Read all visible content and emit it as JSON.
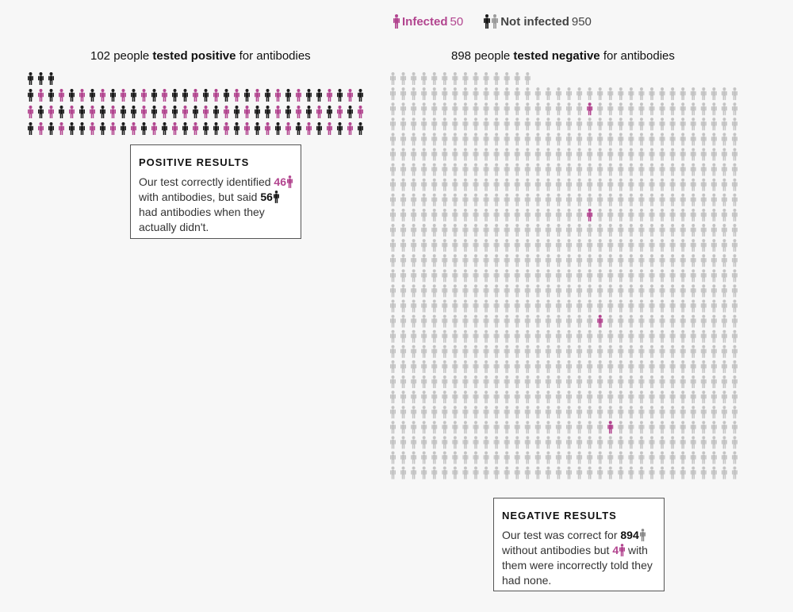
{
  "legend": {
    "infected_label": "Infected",
    "infected_count": "50",
    "not_infected_label": "Not infected",
    "not_infected_count": "950"
  },
  "colors": {
    "infected": "#b2458f",
    "not_infected_positive": "#1a1a1a",
    "not_infected_negative": "#c4c4c4",
    "box_border": "#555555"
  },
  "positive_group": {
    "count": "102",
    "title_pre": "people",
    "title_bold": "tested positive",
    "title_post": "for antibodies"
  },
  "negative_group": {
    "count": "898",
    "title_pre": "people",
    "title_bold": "tested negative",
    "title_post": "for antibodies"
  },
  "positive_box": {
    "title": "POSITIVE RESULTS",
    "text1": "Our test correctly identified",
    "num1": "46",
    "text2": "with antibodies, but said",
    "num2": "56",
    "text3": "had antibodies when they actually didn't."
  },
  "negative_box": {
    "title": "NEGATIVE RESULTS",
    "text1": "Our test was correct for",
    "num1": "894",
    "text2": "without antibodies but",
    "num2": "4",
    "text3": "with them were incorrectly told they had none."
  },
  "chart_data": {
    "type": "icon-array",
    "total": 1000,
    "groups": [
      {
        "name": "tested positive",
        "total": 102,
        "infected": 46,
        "not_infected": 56
      },
      {
        "name": "tested negative",
        "total": 898,
        "infected": 4,
        "not_infected": 894
      }
    ]
  }
}
